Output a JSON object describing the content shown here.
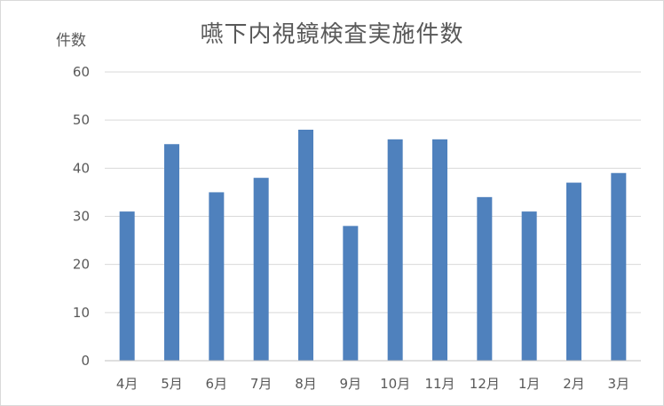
{
  "chart_data": {
    "type": "bar",
    "title": "嚥下内視鏡検査実施件数",
    "ylabel": "件数",
    "xlabel": "",
    "categories": [
      "4月",
      "5月",
      "6月",
      "7月",
      "8月",
      "9月",
      "10月",
      "11月",
      "12月",
      "1月",
      "2月",
      "3月"
    ],
    "values": [
      31,
      45,
      35,
      38,
      48,
      28,
      46,
      46,
      34,
      31,
      37,
      39
    ],
    "ylim": [
      0,
      60
    ],
    "yticks": [
      0,
      10,
      20,
      30,
      40,
      50,
      60
    ],
    "grid": true,
    "legend": "none",
    "colors": {
      "bar": "#4f81bd",
      "grid": "#d9d9d9",
      "text": "#595959",
      "axis": "#bfbfbf"
    }
  }
}
